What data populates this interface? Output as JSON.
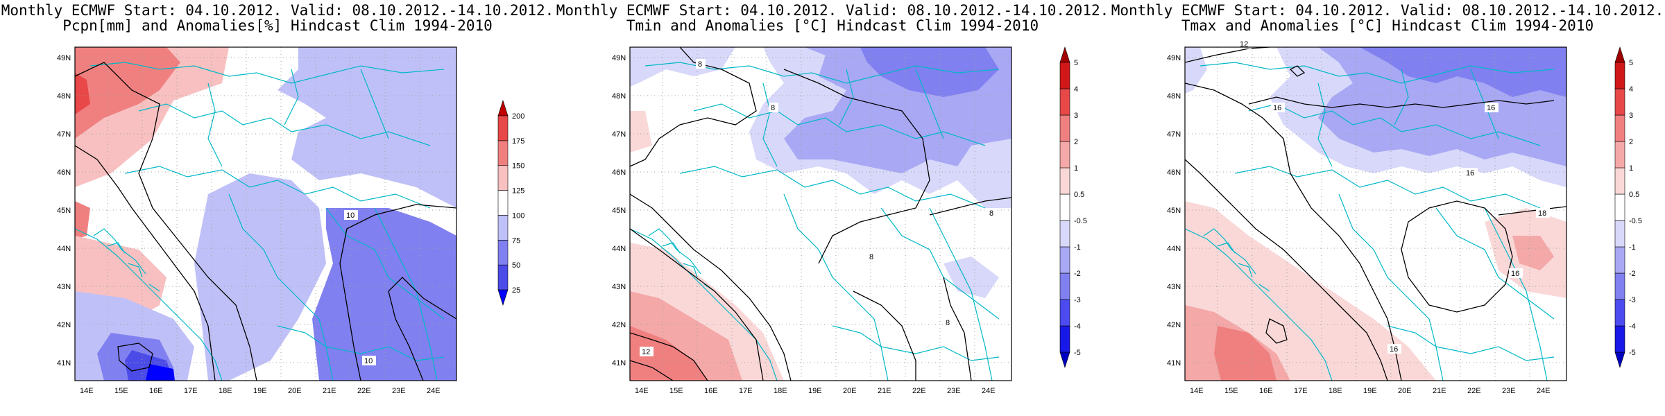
{
  "panels": [
    {
      "title_line1": "Monthly ECMWF Start: 04.10.2012. Valid: 08.10.2012.-14.10.2012.",
      "title_line2": "Pcpn[mm] and Anomalies[%] Hindcast Clim 1994-2010",
      "colorbar_labels": [
        "25",
        "50",
        "75",
        "100",
        "125",
        "150",
        "175",
        "200"
      ],
      "colorbar_colors": [
        "#0000ff",
        "#4b4be8",
        "#8080f0",
        "#c0c0f8",
        "#ffffff",
        "#f8c0c0",
        "#f08080",
        "#e84848",
        "#c00000"
      ],
      "contour_labels": [
        "10",
        "10"
      ]
    },
    {
      "title_line1": "Monthly ECMWF Start: 04.10.2012. Valid: 08.10.2012.-14.10.2012.",
      "title_line2": "Tmin and Anomalies [°C] Hindcast Clim 1994-2010",
      "colorbar_labels": [
        "-5",
        "-4",
        "-3",
        "-2",
        "-1",
        "-0.5",
        "0.5",
        "1",
        "2",
        "3",
        "4",
        "5"
      ],
      "colorbar_colors": [
        "#0000c0",
        "#1818e8",
        "#4b4bf0",
        "#8080f0",
        "#a8a8f4",
        "#d8d8fa",
        "#ffffff",
        "#fad8d8",
        "#f4a8a8",
        "#f08080",
        "#e84848",
        "#d01818",
        "#a00000"
      ],
      "contour_labels": [
        "8",
        "8",
        "8",
        "8",
        "8",
        "12"
      ]
    },
    {
      "title_line1": "Monthly ECMWF Start: 04.10.2012. Valid: 08.10.2012.-14.10.2012.",
      "title_line2": "Tmax and Anomalies [°C] Hindcast Clim 1994-2010",
      "colorbar_labels": [
        "-5",
        "-4",
        "-3",
        "-2",
        "-1",
        "-0.5",
        "0.5",
        "1",
        "2",
        "3",
        "4",
        "5"
      ],
      "colorbar_colors": [
        "#0000c0",
        "#1818e8",
        "#4b4bf0",
        "#8080f0",
        "#a8a8f4",
        "#d8d8fa",
        "#ffffff",
        "#fad8d8",
        "#f4a8a8",
        "#f08080",
        "#e84848",
        "#d01818",
        "#a00000"
      ],
      "contour_labels": [
        "12",
        "16",
        "16",
        "16",
        "18",
        "16",
        "16"
      ]
    }
  ],
  "lon_labels": [
    "14E",
    "15E",
    "16E",
    "17E",
    "18E",
    "19E",
    "20E",
    "21E",
    "22E",
    "23E",
    "24E"
  ],
  "lat_labels": [
    "49N",
    "48N",
    "47N",
    "46N",
    "45N",
    "44N",
    "43N",
    "42N",
    "41N"
  ],
  "colors": {
    "coast": "#00b8c8",
    "contour": "#000000",
    "grid": "#a0a0a0"
  }
}
